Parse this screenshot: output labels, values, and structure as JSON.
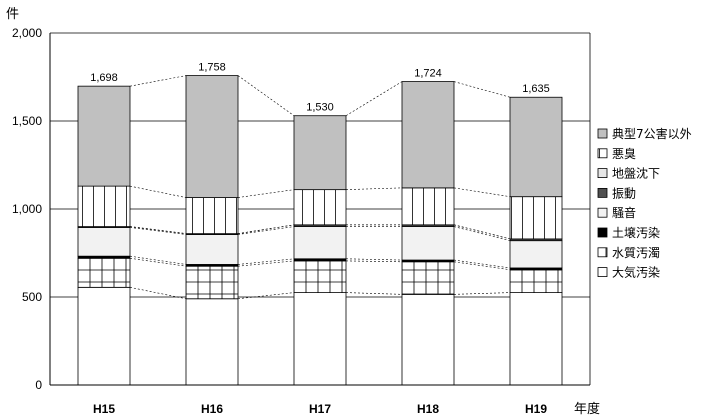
{
  "chart_data": {
    "type": "bar",
    "stacked": true,
    "title": "",
    "ylabel": "件",
    "xlabel": "年度",
    "ylim": [
      0,
      2000
    ],
    "yticks": [
      0,
      500,
      1000,
      1500,
      2000
    ],
    "ytick_labels": [
      "0",
      "500",
      "1,000",
      "1,500",
      "2,000"
    ],
    "grid": true,
    "legend_position": "right",
    "categories": [
      "H15",
      "H16",
      "H17",
      "H18",
      "H19"
    ],
    "totals": [
      1698,
      1758,
      1530,
      1724,
      1635
    ],
    "total_labels": [
      "1,698",
      "1,758",
      "1,530",
      "1,724",
      "1,635"
    ],
    "series": [
      {
        "name": "大気汚染",
        "pattern": "plain-white",
        "values": [
          555,
          490,
          525,
          515,
          525
        ]
      },
      {
        "name": "水質汚濁",
        "pattern": "grid",
        "values": [
          165,
          185,
          180,
          185,
          130
        ]
      },
      {
        "name": "土壌汚染",
        "pattern": "black",
        "values": [
          12,
          10,
          12,
          10,
          10
        ]
      },
      {
        "name": "騒音",
        "pattern": "light-gray",
        "values": [
          163,
          170,
          183,
          190,
          155
        ]
      },
      {
        "name": "振動",
        "pattern": "dark-gray",
        "values": [
          5,
          5,
          10,
          10,
          10
        ]
      },
      {
        "name": "地盤沈下",
        "pattern": "light-gray-2",
        "values": [
          0,
          0,
          0,
          0,
          0
        ]
      },
      {
        "name": "悪臭",
        "pattern": "vertical-lines",
        "values": [
          230,
          205,
          200,
          210,
          240
        ]
      },
      {
        "name": "典型7公害以外",
        "pattern": "gray",
        "values": [
          568,
          693,
          420,
          604,
          565
        ]
      }
    ],
    "colors": {
      "gray": "#c0c0c0",
      "light_gray": "#f2f2f2",
      "dark_gray": "#505050",
      "black": "#000000",
      "white": "#ffffff"
    }
  }
}
